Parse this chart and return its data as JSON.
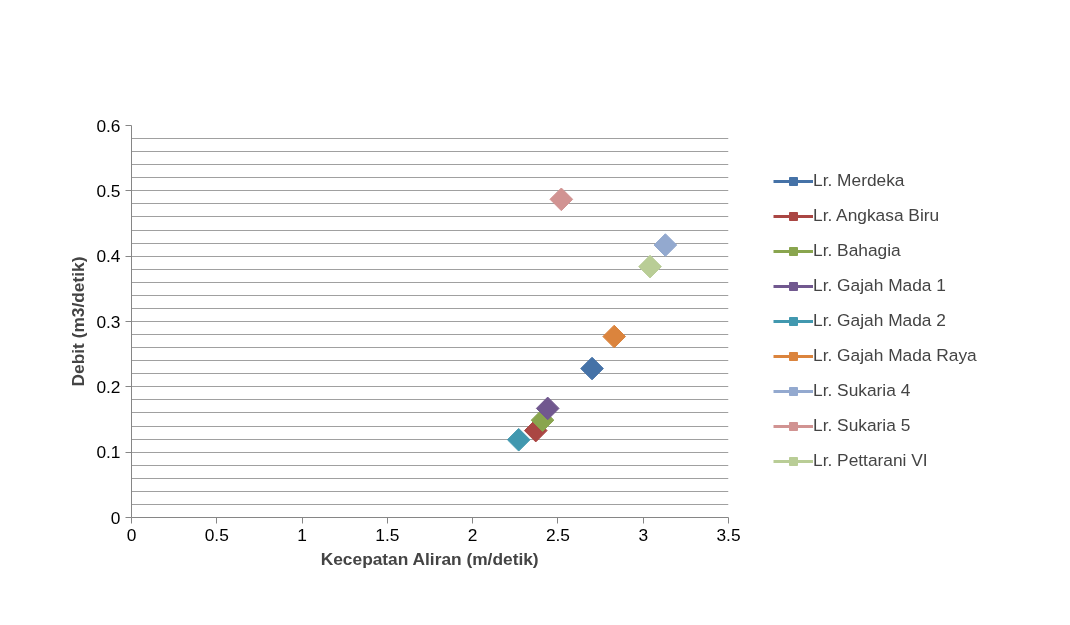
{
  "chart_data": {
    "type": "scatter",
    "xlabel": "Kecepatan Aliran (m/detik)",
    "ylabel": "Debit (m3/detik)",
    "xlim": [
      0,
      3.5
    ],
    "xticks": [
      0,
      0.5,
      1,
      1.5,
      2,
      2.5,
      3,
      3.5
    ],
    "ylim": [
      0,
      0.6
    ],
    "yticks": [
      0,
      0.1,
      0.2,
      0.3,
      0.4,
      0.5,
      0.6
    ],
    "grid": "y",
    "legend": "right",
    "marker": "diamond",
    "series": [
      {
        "name": "Lr. Merdeka",
        "color": "#4572a7",
        "x": [
          2.7
        ],
        "values": [
          0.228
        ]
      },
      {
        "name": "Lr. Angkasa Biru",
        "color": "#aa4643",
        "x": [
          2.37
        ],
        "values": [
          0.133
        ]
      },
      {
        "name": "Lr. Bahagia",
        "color": "#89a54e",
        "x": [
          2.41
        ],
        "values": [
          0.149
        ]
      },
      {
        "name": "Lr. Gajah Mada 1",
        "color": "#71588f",
        "x": [
          2.44
        ],
        "values": [
          0.167
        ]
      },
      {
        "name": "Lr. Gajah Mada 2",
        "color": "#4198af",
        "x": [
          2.27
        ],
        "values": [
          0.119
        ]
      },
      {
        "name": "Lr. Gajah Mada Raya",
        "color": "#db843d",
        "x": [
          2.83
        ],
        "values": [
          0.277
        ]
      },
      {
        "name": "Lr. Sukaria 4",
        "color": "#93a9cf",
        "x": [
          3.13
        ],
        "values": [
          0.417
        ]
      },
      {
        "name": "Lr. Sukaria 5",
        "color": "#d19392",
        "x": [
          2.52
        ],
        "values": [
          0.487
        ]
      },
      {
        "name": "Lr. Pettarani VI",
        "color": "#b9cd96",
        "x": [
          3.04
        ],
        "values": [
          0.384
        ]
      }
    ]
  }
}
